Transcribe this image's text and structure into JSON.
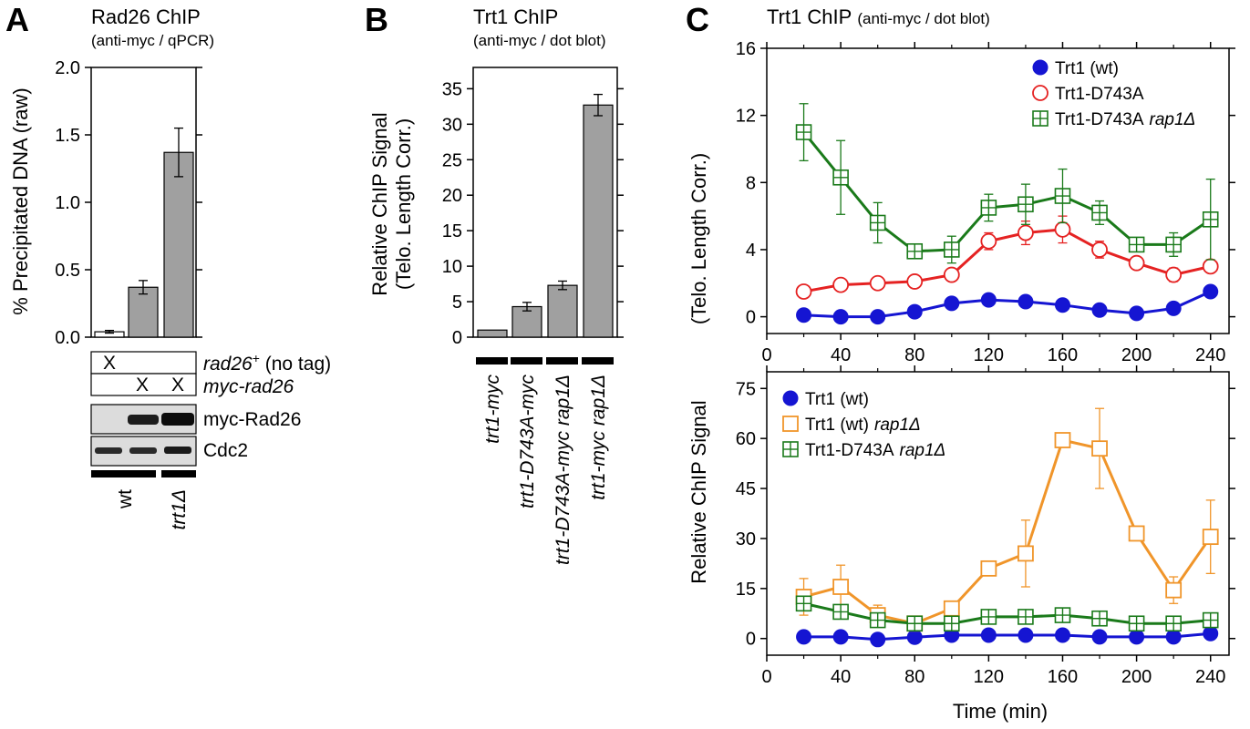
{
  "panels": {
    "a": {
      "letter": "A",
      "title": "Rad26 ChIP",
      "subtitle": "(anti-myc / qPCR)",
      "rows": [
        {
          "italic": "rad26",
          "sup": "+",
          "rest": " (no tag)",
          "marks": [
            "X",
            "",
            ""
          ]
        },
        {
          "italic": "myc-rad26",
          "sup": "",
          "rest": "",
          "marks": [
            "",
            "X",
            "X"
          ]
        }
      ],
      "blots": [
        "myc-Rad26",
        "Cdc2"
      ],
      "genotypes": [
        "wt",
        "trt1Δ"
      ]
    },
    "b": {
      "letter": "B",
      "title": "Trt1 ChIP",
      "subtitle": "(anti-myc / dot blot)"
    },
    "c": {
      "letter": "C",
      "title": "Trt1 ChIP",
      "subtitle": "(anti-myc / dot blot)"
    }
  },
  "chart_data": [
    {
      "id": "A",
      "type": "bar",
      "title": "Rad26 ChIP",
      "subtitle": "(anti-myc / qPCR)",
      "ylabel": "% Precipitated DNA (raw)",
      "ylim": [
        0,
        2.0
      ],
      "yticks": [
        0.0,
        0.5,
        1.0,
        1.5,
        2.0
      ],
      "ytick_labels": [
        "0.0",
        "0.5",
        "1.0",
        "1.5",
        "2.0"
      ],
      "values": [
        0.04,
        0.37,
        1.37
      ],
      "errors": [
        0.01,
        0.05,
        0.18
      ],
      "bar_colors": [
        "#ffffff",
        "#a0a0a0",
        "#a0a0a0"
      ]
    },
    {
      "id": "B",
      "type": "bar",
      "title": "Trt1 ChIP",
      "subtitle": "(anti-myc / dot blot)",
      "ylabel_lines": [
        "Relative ChIP Signal",
        "(Telo. Length Corr.)"
      ],
      "ylim": [
        0,
        38
      ],
      "yticks": [
        0,
        5,
        10,
        15,
        20,
        25,
        30,
        35
      ],
      "categories": [
        "trt1-myc",
        "trt1-D743A-myc",
        "trt1-D743A-myc rap1Δ",
        "trt1-myc rap1Δ"
      ],
      "values": [
        1.0,
        4.3,
        7.3,
        32.7
      ],
      "errors": [
        0.0,
        0.6,
        0.6,
        1.5
      ]
    },
    {
      "id": "C-top",
      "type": "line",
      "xlim": [
        0,
        250
      ],
      "xticks": [
        0,
        40,
        80,
        120,
        160,
        200,
        240
      ],
      "ylim": [
        -1,
        16
      ],
      "yticks": [
        0,
        4,
        8,
        12,
        16
      ],
      "ylabel": "(Telo. Length Corr.)",
      "series": [
        {
          "name": "Trt1 (wt)",
          "marker": "filled-circle",
          "color": "#1515d2",
          "x": [
            20,
            40,
            60,
            80,
            100,
            120,
            140,
            160,
            180,
            200,
            220,
            240
          ],
          "y": [
            0.1,
            0.0,
            0.0,
            0.3,
            0.8,
            1.0,
            0.9,
            0.7,
            0.4,
            0.2,
            0.5,
            1.5
          ],
          "err": [
            0,
            0,
            0,
            0,
            0,
            0,
            0,
            0,
            0,
            0,
            0,
            0
          ]
        },
        {
          "name": "Trt1-D743A",
          "marker": "open-circle",
          "color": "#e52222",
          "x": [
            20,
            40,
            60,
            80,
            100,
            120,
            140,
            160,
            180,
            200,
            220,
            240
          ],
          "y": [
            1.5,
            1.9,
            2.0,
            2.1,
            2.5,
            4.5,
            5.0,
            5.2,
            4.0,
            3.2,
            2.5,
            3.0
          ],
          "err": [
            0,
            0,
            0,
            0,
            0.2,
            0.5,
            0.7,
            0.8,
            0.5,
            0,
            0.4,
            0
          ]
        },
        {
          "name": "Trt1-D743A",
          "name_italic": "rap1Δ",
          "marker": "boxed-plus",
          "color": "#1a7a1a",
          "x": [
            20,
            40,
            60,
            80,
            100,
            120,
            140,
            160,
            180,
            200,
            220,
            240
          ],
          "y": [
            11.0,
            8.3,
            5.6,
            3.9,
            4.0,
            6.5,
            6.7,
            7.2,
            6.2,
            4.3,
            4.3,
            5.8
          ],
          "err": [
            1.7,
            2.2,
            1.2,
            0,
            0.8,
            0.8,
            1.2,
            1.6,
            0.7,
            0.4,
            0.7,
            2.4
          ]
        }
      ]
    },
    {
      "id": "C-bottom",
      "type": "line",
      "xlim": [
        0,
        250
      ],
      "xticks": [
        0,
        40,
        80,
        120,
        160,
        200,
        240
      ],
      "ylim": [
        -5,
        80
      ],
      "yticks": [
        0,
        15,
        30,
        45,
        60,
        75
      ],
      "xlabel": "Time (min)",
      "ylabel": "Relative ChIP Signal",
      "series": [
        {
          "name": "Trt1 (wt)",
          "marker": "filled-circle",
          "color": "#1515d2",
          "x": [
            20,
            40,
            60,
            80,
            100,
            120,
            140,
            160,
            180,
            200,
            220,
            240
          ],
          "y": [
            0.5,
            0.5,
            -0.3,
            0.4,
            1.0,
            1.0,
            1.0,
            1.0,
            0.5,
            0.5,
            0.5,
            1.5
          ],
          "err": [
            0,
            0,
            0,
            0,
            0,
            0,
            0,
            0,
            0,
            0,
            0,
            0
          ]
        },
        {
          "name": "Trt1 (wt)",
          "name_italic": "rap1Δ",
          "marker": "open-square",
          "color": "#f0952a",
          "x": [
            20,
            40,
            60,
            80,
            100,
            120,
            140,
            160,
            180,
            200,
            220,
            240
          ],
          "y": [
            12.5,
            15.5,
            7.0,
            4.5,
            9.0,
            21.0,
            25.5,
            59.5,
            57.0,
            31.5,
            14.5,
            30.5
          ],
          "err": [
            5.5,
            6.5,
            3.0,
            0,
            0,
            0,
            10.0,
            0,
            12.0,
            0,
            4.0,
            11.0
          ]
        },
        {
          "name": "Trt1-D743A",
          "name_italic": "rap1Δ",
          "marker": "boxed-plus",
          "color": "#1a7a1a",
          "x": [
            20,
            40,
            60,
            80,
            100,
            120,
            140,
            160,
            180,
            200,
            220,
            240
          ],
          "y": [
            10.5,
            8.0,
            5.5,
            4.5,
            4.5,
            6.5,
            6.5,
            7.0,
            6.0,
            4.5,
            4.5,
            5.5
          ],
          "err": [
            0,
            0,
            0,
            0,
            0,
            0,
            0,
            0,
            0,
            0,
            0,
            0
          ]
        }
      ]
    }
  ]
}
